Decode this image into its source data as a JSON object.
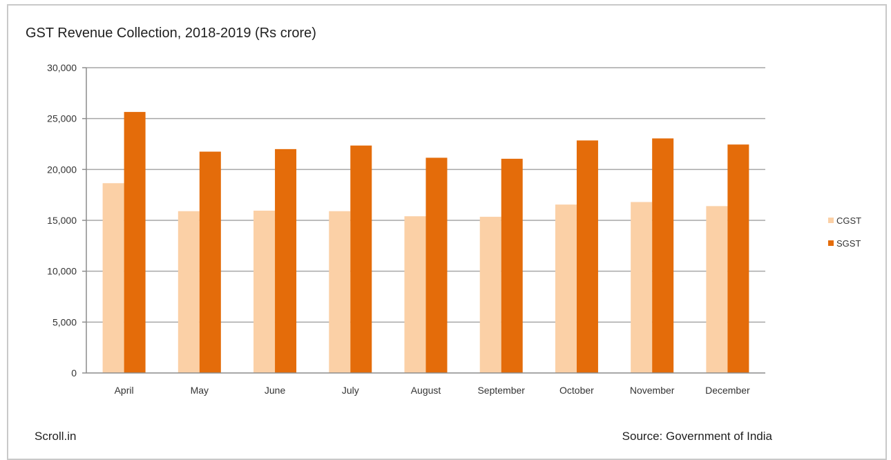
{
  "chart_data": {
    "type": "bar",
    "title": "GST Revenue Collection, 2018-2019 (Rs crore)",
    "categories": [
      "April",
      "May",
      "June",
      "July",
      "August",
      "September",
      "October",
      "November",
      "December"
    ],
    "series": [
      {
        "name": "CGST",
        "color": "#fbd0a6",
        "values": [
          18650,
          15900,
          15950,
          15900,
          15400,
          15350,
          16550,
          16800,
          16400
        ]
      },
      {
        "name": "SGST",
        "color": "#e46c0a",
        "values": [
          25650,
          21750,
          22000,
          22350,
          21150,
          21050,
          22850,
          23050,
          22450
        ]
      }
    ],
    "ylim": [
      0,
      30000
    ],
    "yticks": [
      "0",
      "5,000",
      "10,000",
      "15,000",
      "20,000",
      "25,000",
      "30,000"
    ],
    "grid": true,
    "legend": "right"
  },
  "footer": {
    "left": "Scroll.in",
    "right": "Source: Government of India"
  }
}
